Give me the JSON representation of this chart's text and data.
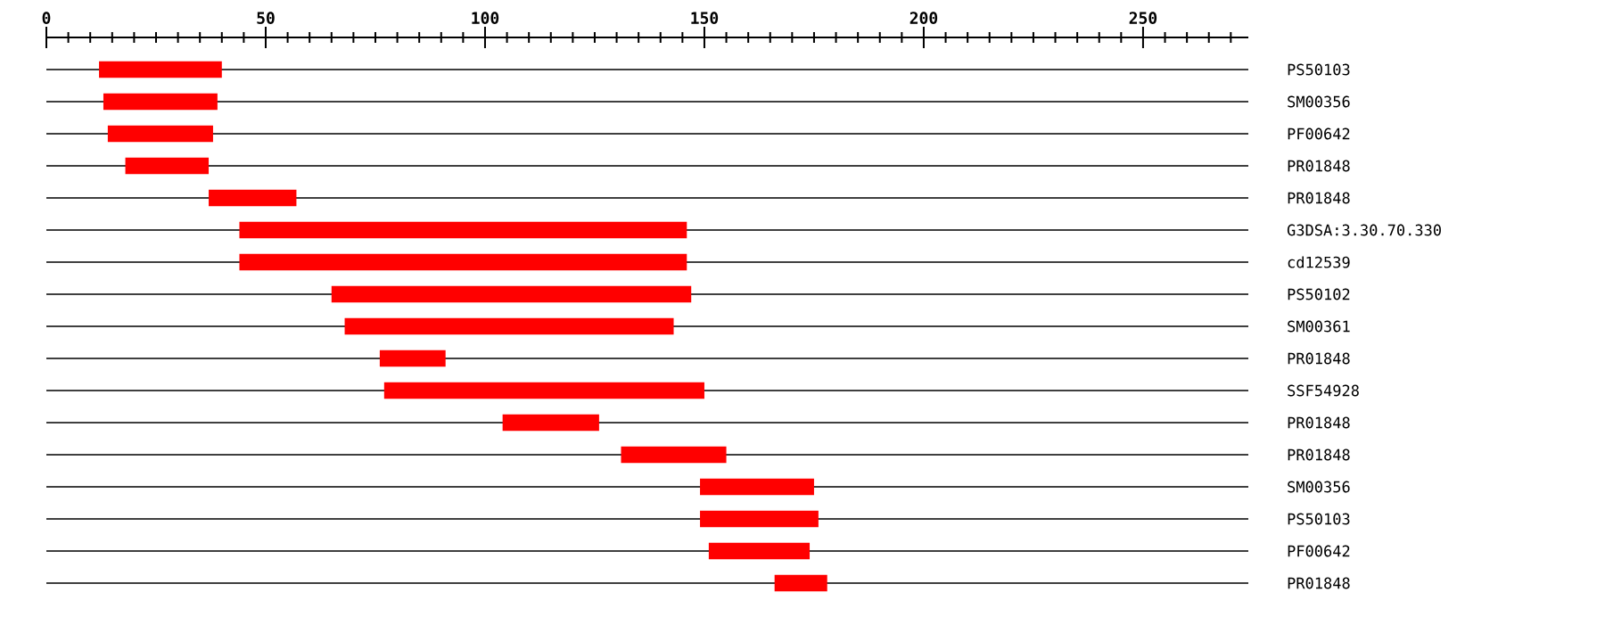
{
  "chart_data": {
    "type": "bar",
    "orientation": "horizontal",
    "color": "#ff0000",
    "grid": "y",
    "categories": [
      "PS50103",
      "SM00356",
      "PF00642",
      "PR01848",
      "PR01848",
      "G3DSA:3.30.70.330",
      "cd12539",
      "PS50102",
      "SM00361",
      "PR01848",
      "SSF54928",
      "PR01848",
      "PR01848",
      "SM00356",
      "PS50103",
      "PF00642",
      "PR01848"
    ],
    "base": [
      12,
      13,
      14,
      18,
      37,
      44,
      44,
      65,
      68,
      76,
      77,
      104,
      131,
      149,
      149,
      151,
      166
    ],
    "values": [
      28,
      26,
      24,
      19,
      20,
      102,
      102,
      82,
      75,
      15,
      73,
      22,
      24,
      26,
      27,
      23,
      12
    ],
    "xlim": [
      0,
      274
    ],
    "xticks": [
      0,
      {
        "value": 5,
        "label": null
      },
      {
        "value": 10,
        "label": null
      },
      {
        "value": 15,
        "label": null
      },
      {
        "value": 20,
        "label": null
      },
      {
        "value": 25,
        "label": null
      },
      {
        "value": 30,
        "label": null
      },
      {
        "value": 35,
        "label": null
      },
      {
        "value": 40,
        "label": null
      },
      {
        "value": 45,
        "label": null
      },
      50,
      {
        "value": 55,
        "label": null
      },
      {
        "value": 60,
        "label": null
      },
      {
        "value": 65,
        "label": null
      },
      {
        "value": 70,
        "label": null
      },
      {
        "value": 75,
        "label": null
      },
      {
        "value": 80,
        "label": null
      },
      {
        "value": 85,
        "label": null
      },
      {
        "value": 90,
        "label": null
      },
      {
        "value": 95,
        "label": null
      },
      100,
      {
        "value": 105,
        "label": null
      },
      {
        "value": 110,
        "label": null
      },
      {
        "value": 115,
        "label": null
      },
      {
        "value": 120,
        "label": null
      },
      {
        "value": 125,
        "label": null
      },
      {
        "value": 130,
        "label": null
      },
      {
        "value": 135,
        "label": null
      },
      {
        "value": 140,
        "label": null
      },
      {
        "value": 145,
        "label": null
      },
      150,
      {
        "value": 155,
        "label": null
      },
      {
        "value": 160,
        "label": null
      },
      {
        "value": 165,
        "label": null
      },
      {
        "value": 170,
        "label": null
      },
      {
        "value": 175,
        "label": null
      },
      {
        "value": 180,
        "label": null
      },
      {
        "value": 185,
        "label": null
      },
      {
        "value": 190,
        "label": null
      },
      {
        "value": 195,
        "label": null
      },
      200,
      {
        "value": 205,
        "label": null
      },
      {
        "value": 210,
        "label": null
      },
      {
        "value": 215,
        "label": null
      },
      {
        "value": 220,
        "label": null
      },
      {
        "value": 225,
        "label": null
      },
      {
        "value": 230,
        "label": null
      },
      {
        "value": 235,
        "label": null
      },
      {
        "value": 240,
        "label": null
      },
      {
        "value": 245,
        "label": null
      },
      250,
      {
        "value": 255,
        "label": null
      },
      {
        "value": 260,
        "label": null
      },
      {
        "value": 265,
        "label": null
      },
      {
        "value": 270,
        "label": null
      }
    ]
  }
}
